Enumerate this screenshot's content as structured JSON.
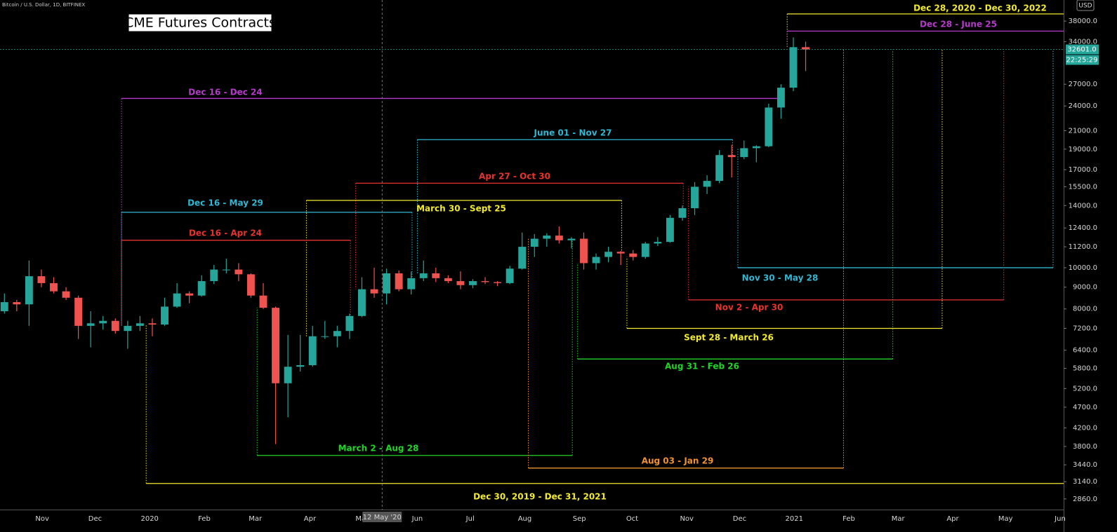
{
  "chart_data": {
    "type": "candlestick",
    "title": "CME Futures Contracts",
    "subtitle": "Bitcoin / U.S. Dollar, 1D, BITFINEX",
    "currency": "USD",
    "log_scale": true,
    "grid": false,
    "up_color": "#26a69a",
    "down_color": "#ef5350",
    "xlim": [
      "2019-10-08",
      "2021-06-03"
    ],
    "ylim": [
      2700,
      42600
    ],
    "x": [
      "2019-10-07",
      "2019-10-14",
      "2019-10-21",
      "2019-10-28",
      "2019-11-04",
      "2019-11-11",
      "2019-11-18",
      "2019-11-25",
      "2019-12-02",
      "2019-12-09",
      "2019-12-16",
      "2019-12-23",
      "2019-12-30",
      "2020-01-06",
      "2020-01-13",
      "2020-01-20",
      "2020-01-27",
      "2020-02-03",
      "2020-02-10",
      "2020-02-17",
      "2020-02-24",
      "2020-03-02",
      "2020-03-09",
      "2020-03-16",
      "2020-03-23",
      "2020-03-30",
      "2020-04-06",
      "2020-04-13",
      "2020-04-20",
      "2020-04-27",
      "2020-05-04",
      "2020-05-11",
      "2020-05-18",
      "2020-05-25",
      "2020-06-01",
      "2020-06-08",
      "2020-06-15",
      "2020-06-22",
      "2020-06-29",
      "2020-07-06",
      "2020-07-13",
      "2020-07-20",
      "2020-07-27",
      "2020-08-03",
      "2020-08-10",
      "2020-08-17",
      "2020-08-24",
      "2020-08-31",
      "2020-09-07",
      "2020-09-14",
      "2020-09-21",
      "2020-09-28",
      "2020-10-05",
      "2020-10-12",
      "2020-10-19",
      "2020-10-26",
      "2020-11-02",
      "2020-11-09",
      "2020-11-16",
      "2020-11-23",
      "2020-11-30",
      "2020-12-07",
      "2020-12-14",
      "2020-12-21",
      "2020-12-28",
      "2021-01-04"
    ],
    "open": [
      7900,
      8300,
      8200,
      9550,
      9200,
      8800,
      8500,
      7300,
      7400,
      7500,
      7100,
      7300,
      7400,
      7350,
      8100,
      8700,
      8600,
      9300,
      9900,
      9900,
      9650,
      8600,
      8050,
      5350,
      5850,
      5900,
      6900,
      6900,
      7100,
      7700,
      8900,
      8700,
      9700,
      8900,
      9450,
      9700,
      9450,
      9300,
      9100,
      9300,
      9250,
      9200,
      9950,
      11200,
      11700,
      11900,
      11600,
      11700,
      10250,
      10600,
      10900,
      10800,
      10600,
      11400,
      11500,
      13100,
      13800,
      15500,
      16000,
      18400,
      18200,
      19100,
      19300,
      23800,
      26500,
      33000
    ],
    "high": [
      8700,
      8400,
      10400,
      9900,
      9500,
      9000,
      8600,
      7900,
      7700,
      7600,
      7500,
      7700,
      7600,
      8500,
      9200,
      8800,
      9600,
      10150,
      10500,
      10250,
      9700,
      9200,
      8100,
      6950,
      6950,
      7300,
      7500,
      7300,
      7800,
      9500,
      10000,
      9950,
      9850,
      9800,
      10400,
      10000,
      9600,
      9800,
      9400,
      9500,
      9300,
      10100,
      12100,
      12000,
      12050,
      12500,
      11800,
      12100,
      10800,
      11200,
      10950,
      11000,
      11500,
      11800,
      13300,
      14000,
      15900,
      16500,
      18900,
      19450,
      19900,
      19400,
      24300,
      27000,
      34800,
      34000
    ],
    "low": [
      7800,
      7900,
      7300,
      9000,
      8700,
      8400,
      6800,
      6500,
      7150,
      7000,
      6450,
      7100,
      6900,
      7300,
      8050,
      8250,
      8550,
      9150,
      9700,
      9300,
      8500,
      8000,
      3850,
      4450,
      5700,
      5850,
      6800,
      6500,
      6800,
      7650,
      8500,
      8200,
      8800,
      8650,
      9300,
      9250,
      9200,
      8900,
      8950,
      9150,
      9050,
      9150,
      9900,
      10600,
      11200,
      11400,
      11100,
      9900,
      9900,
      10300,
      10150,
      10400,
      10500,
      11250,
      11450,
      12900,
      13300,
      14900,
      15800,
      16300,
      18000,
      17700,
      19200,
      22400,
      26000,
      29000
    ],
    "close": [
      8300,
      8200,
      9550,
      9200,
      8800,
      8500,
      7300,
      7400,
      7500,
      7100,
      7300,
      7400,
      7350,
      8100,
      8700,
      8600,
      9300,
      9900,
      9900,
      9650,
      8600,
      8050,
      5350,
      5850,
      5900,
      6900,
      6900,
      7100,
      7700,
      8900,
      8700,
      9700,
      8900,
      9450,
      9700,
      9450,
      9300,
      9100,
      9300,
      9250,
      9200,
      9950,
      11200,
      11700,
      11900,
      11600,
      11700,
      10250,
      10600,
      10900,
      10800,
      10600,
      11400,
      11500,
      13100,
      13800,
      15500,
      16000,
      18400,
      18200,
      19100,
      19300,
      23800,
      26500,
      33000,
      32601
    ],
    "price_marker": {
      "value": 32601,
      "label": "32601.0",
      "countdown": "22:25:29",
      "color": "#26a69a"
    },
    "crosshair": {
      "x": "2020-05-12",
      "label": "12 May '20"
    },
    "yticks": [
      {
        "value": 38000,
        "label": "38000.0"
      },
      {
        "value": 34000,
        "label": "34000.0"
      },
      {
        "value": 27000,
        "label": "27000.0"
      },
      {
        "value": 24000,
        "label": "24000.0"
      },
      {
        "value": 21000,
        "label": "21000.0"
      },
      {
        "value": 19000,
        "label": "19000.0"
      },
      {
        "value": 17000,
        "label": "17000.0"
      },
      {
        "value": 15500,
        "label": "15500.0"
      },
      {
        "value": 14000,
        "label": "14000.0"
      },
      {
        "value": 12400,
        "label": "12400.0"
      },
      {
        "value": 11200,
        "label": "11200.0"
      },
      {
        "value": 10000,
        "label": "10000.0"
      },
      {
        "value": 9000,
        "label": "9000.0"
      },
      {
        "value": 8000,
        "label": "8000.0"
      },
      {
        "value": 7200,
        "label": "7200.0"
      },
      {
        "value": 6400,
        "label": "6400.0"
      },
      {
        "value": 5800,
        "label": "5800.0"
      },
      {
        "value": 5200,
        "label": "5200.0"
      },
      {
        "value": 4700,
        "label": "4700.0"
      },
      {
        "value": 4200,
        "label": "4200.0"
      },
      {
        "value": 3800,
        "label": "3800.0"
      },
      {
        "value": 3440,
        "label": "3440.0"
      },
      {
        "value": 3140,
        "label": "3140.0"
      },
      {
        "value": 2860,
        "label": "2860.0"
      }
    ],
    "xticks": [
      {
        "value": "2019-11-01",
        "label": "Nov"
      },
      {
        "value": "2019-12-01",
        "label": "Dec"
      },
      {
        "value": "2020-01-01",
        "label": "2020"
      },
      {
        "value": "2020-02-01",
        "label": "Feb"
      },
      {
        "value": "2020-03-01",
        "label": "Mar"
      },
      {
        "value": "2020-04-01",
        "label": "Apr"
      },
      {
        "value": "2020-05-01",
        "label": "May"
      },
      {
        "value": "2020-06-01",
        "label": "Jun"
      },
      {
        "value": "2020-07-01",
        "label": "Jul"
      },
      {
        "value": "2020-08-01",
        "label": "Aug"
      },
      {
        "value": "2020-09-01",
        "label": "Sep"
      },
      {
        "value": "2020-10-01",
        "label": "Oct"
      },
      {
        "value": "2020-11-01",
        "label": "Nov"
      },
      {
        "value": "2020-12-01",
        "label": "Dec"
      },
      {
        "value": "2021-01-01",
        "label": "2021"
      },
      {
        "value": "2021-02-01",
        "label": "Feb"
      },
      {
        "value": "2021-03-01",
        "label": "Mar"
      },
      {
        "value": "2021-04-01",
        "label": "Apr"
      },
      {
        "value": "2021-05-01",
        "label": "May"
      },
      {
        "value": "2021-06-01",
        "label": "Jun"
      }
    ],
    "contracts": [
      {
        "label": "Dec 28, 2020 - Dec 30, 2022",
        "color": "#f2ea2e",
        "start": "2020-12-28",
        "end": "2022-12-30",
        "level": 39500
      },
      {
        "label": "Dec 28 - June 25",
        "color": "#b53ac9",
        "start": "2020-12-28",
        "end": "2021-06-25",
        "level": 36000
      },
      {
        "label": "Dec 16 - Dec 24",
        "color": "#b53ac9",
        "start": "2019-12-16",
        "end": "2020-12-24",
        "level": 25000
      },
      {
        "label": "June 01 - Nov 27",
        "color": "#2fb7d3",
        "start": "2020-06-01",
        "end": "2020-11-27",
        "level": 20000
      },
      {
        "label": "Apr 27 - Oct 30",
        "color": "#e8322f",
        "start": "2020-04-27",
        "end": "2020-10-30",
        "level": 15800
      },
      {
        "label": "March 30 - Sept 25",
        "color": "#f2ea2e",
        "start": "2020-03-30",
        "end": "2020-09-25",
        "level": 14400
      },
      {
        "label": "Dec 16 - May 29",
        "color": "#2fb7d3",
        "start": "2019-12-16",
        "end": "2020-05-29",
        "level": 13500
      },
      {
        "label": "Dec 16 - Apr 24",
        "color": "#e8322f",
        "start": "2019-12-16",
        "end": "2020-04-24",
        "level": 11600
      },
      {
        "label": "Nov 30 - May 28",
        "color": "#2fb7d3",
        "start": "2020-11-30",
        "end": "2021-05-28",
        "level": 10000
      },
      {
        "label": "Nov 2 - Apr 30",
        "color": "#e8322f",
        "start": "2020-11-02",
        "end": "2021-04-30",
        "level": 8400
      },
      {
        "label": "Sept 28 - March 26",
        "color": "#f2ea2e",
        "start": "2020-09-28",
        "end": "2021-03-26",
        "level": 7200
      },
      {
        "label": "Aug 31 - Feb 26",
        "color": "#22d42a",
        "start": "2020-08-31",
        "end": "2021-02-26",
        "level": 6100
      },
      {
        "label": "March 2 - Aug 28",
        "color": "#22d42a",
        "start": "2020-03-02",
        "end": "2020-08-28",
        "level": 3620
      },
      {
        "label": "Aug 03 - Jan 29",
        "color": "#f0922e",
        "start": "2020-08-03",
        "end": "2021-01-29",
        "level": 3380
      },
      {
        "label": "Dec 30, 2019 - Dec 31, 2021",
        "color": "#f2ea2e",
        "start": "2019-12-30",
        "end": "2021-12-31",
        "level": 3110
      }
    ]
  }
}
